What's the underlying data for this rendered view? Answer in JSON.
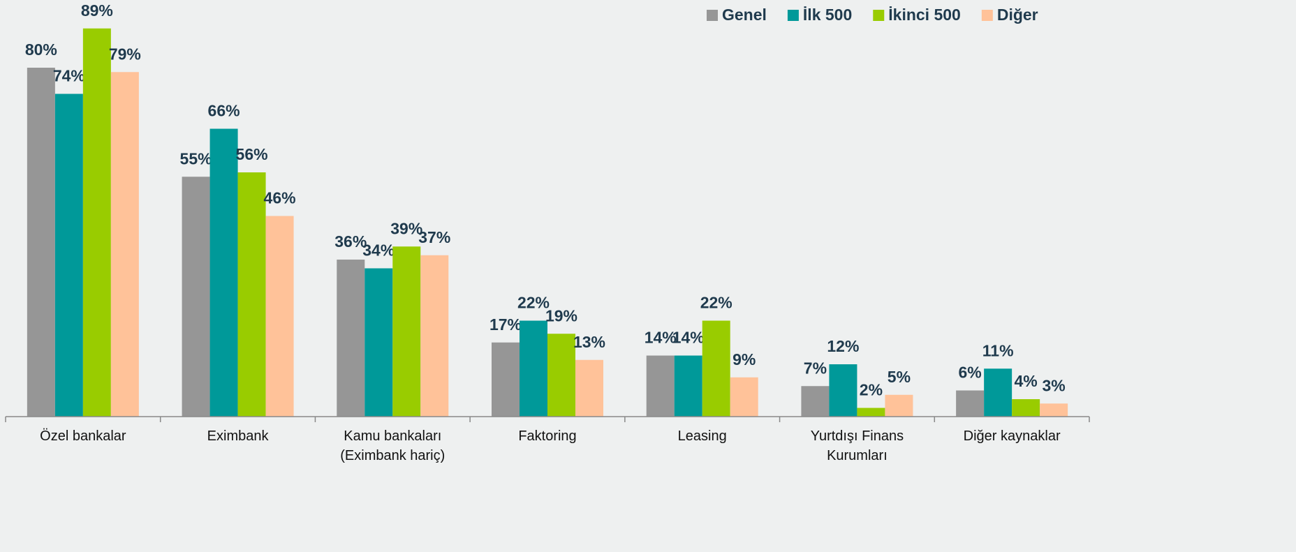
{
  "chart_data": {
    "type": "bar",
    "categories": [
      "Özel bankalar",
      "Eximbank",
      "Kamu bankaları (Eximbank hariç)",
      "Faktoring",
      "Leasing",
      "Yurtdışı Finans Kurumları",
      "Diğer kaynaklar"
    ],
    "series": [
      {
        "name": "Genel",
        "color": "#969696",
        "values": [
          80,
          55,
          36,
          17,
          14,
          7,
          6
        ],
        "value_labels": [
          "80%",
          "55%",
          "36%",
          "17%",
          "14%",
          "7%",
          "6%"
        ]
      },
      {
        "name": "İlk 500",
        "color": "#009999",
        "values": [
          74,
          66,
          34,
          22,
          14,
          12,
          11
        ],
        "value_labels": [
          "74%",
          "66%",
          "34%",
          "22%",
          "14%",
          "12%",
          "11%"
        ]
      },
      {
        "name": "İkinci 500",
        "color": "#99cc00",
        "values": [
          89,
          56,
          39,
          19,
          22,
          2,
          4
        ],
        "value_labels": [
          "89%",
          "56%",
          "39%",
          "19%",
          "22%",
          "2%",
          "4%"
        ]
      },
      {
        "name": "Diğer",
        "color": "#ffc299",
        "values": [
          79,
          46,
          37,
          13,
          9,
          5,
          3
        ],
        "value_labels": [
          "79%",
          "46%",
          "37%",
          "13%",
          "9%",
          "5%",
          "3%"
        ]
      }
    ],
    "ylim": [
      0,
      100
    ],
    "legend": "top-right"
  }
}
